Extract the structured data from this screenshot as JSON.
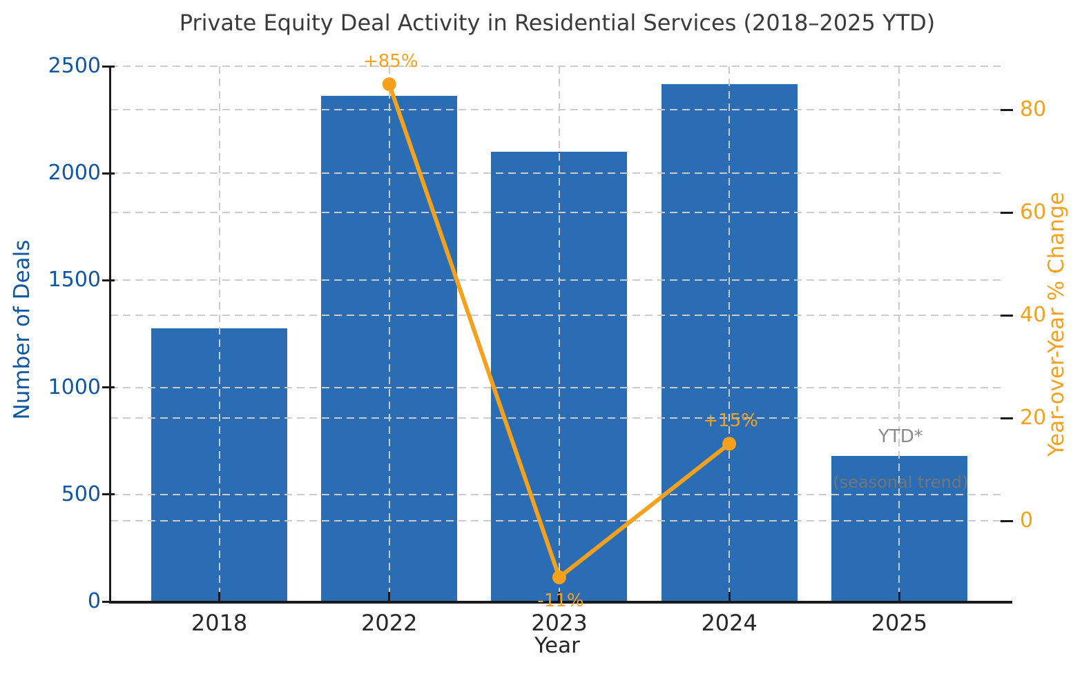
{
  "chart_data": {
    "type": "bar",
    "title": "Private Equity Deal Activity in Residential Services (2018–2025 YTD)",
    "xlabel": "Year",
    "ylabel_left": "Number of Deals",
    "ylabel_right": "Year-over-Year % Change",
    "categories": [
      "2018",
      "2022",
      "2023",
      "2024",
      "2025"
    ],
    "series": [
      {
        "name": "Number of Deals",
        "type": "bar",
        "axis": "left",
        "color": "#2a6db5",
        "values": [
          1275,
          2360,
          2100,
          2415,
          680
        ]
      },
      {
        "name": "Year-over-Year % Change",
        "type": "line",
        "axis": "right",
        "color": "#f5a11c",
        "values": [
          null,
          85,
          -11,
          15,
          null
        ]
      }
    ],
    "left_axis": {
      "ticks": [
        0,
        500,
        1000,
        1500,
        2000,
        2500
      ],
      "lim": [
        0,
        2500
      ],
      "color": "#0f56a3"
    },
    "right_axis": {
      "ticks": [
        0,
        20,
        40,
        60,
        80
      ],
      "lim": [
        -15.7,
        88.5
      ],
      "color": "#f5a11c"
    },
    "grid": {
      "horizontal": "dashed, both left and right axis ticks",
      "vertical": "dashed, one per category",
      "drawn_above_bars": true
    },
    "legend": "none",
    "annotations": [
      {
        "text": "+85%",
        "category": "2022",
        "value": 85,
        "axis": "right",
        "placement": "above",
        "color": "#f5a11c",
        "font_size": 26
      },
      {
        "text": "-11%",
        "category": "2023",
        "value": -11,
        "axis": "right",
        "placement": "below",
        "color": "#f5a11c",
        "font_size": 26
      },
      {
        "text": "+15%",
        "category": "2024",
        "value": 15,
        "axis": "right",
        "placement": "above",
        "color": "#f5a11c",
        "font_size": 26
      },
      {
        "text": "YTD*",
        "category": "2025",
        "value": null,
        "axis": "left",
        "placement": "above-bar",
        "color": "#8a8a8a",
        "font_size": 26
      },
      {
        "text": "(seasonal trend)",
        "category": "2025",
        "value": null,
        "axis": "left",
        "placement": "on-bar",
        "color": "#757575",
        "font_size": 24
      }
    ],
    "colors": {
      "title_text": "#3b3b3b",
      "x_tick_text": "#262626",
      "gridline": "#cbcbcb",
      "spine": "#1a1a1a",
      "background": "#ffffff"
    }
  }
}
